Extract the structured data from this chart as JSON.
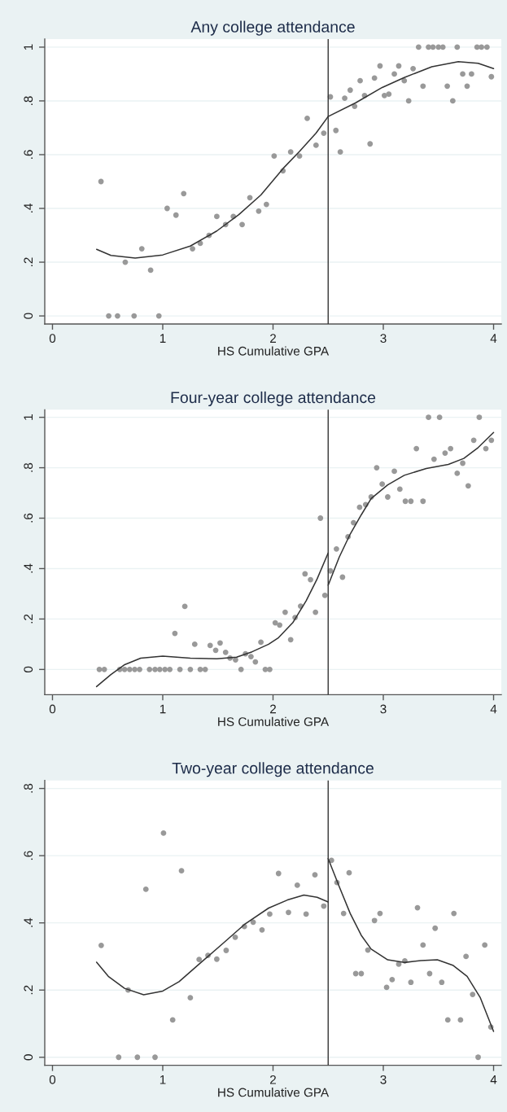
{
  "chart_data": [
    {
      "type": "scatter",
      "title": "Any college attendance",
      "xlabel": "HS Cumulative GPA",
      "xlim": [
        -0.07,
        4.07
      ],
      "xticks": [
        0,
        1,
        2,
        3,
        4
      ],
      "ylim": [
        -0.03,
        1.03
      ],
      "yticks": [
        0,
        {
          "value": 0.2,
          "label": ".2"
        },
        {
          "value": 0.4,
          "label": ".4"
        },
        {
          "value": 0.6,
          "label": ".6"
        },
        {
          "value": 0.8,
          "label": ".8"
        },
        1
      ],
      "grid": "y",
      "ref_lines": [
        {
          "axis": "x",
          "value": 2.5,
          "color": "#333333"
        }
      ],
      "series": [
        {
          "marker": "circle",
          "color": "#999999",
          "x": [
            0.44,
            0.51,
            0.59,
            0.66,
            0.74,
            0.81,
            0.89,
            0.965,
            1.04,
            1.12,
            1.19,
            1.27,
            1.34,
            1.42,
            1.49,
            1.57,
            1.64,
            1.72,
            1.79,
            1.87,
            1.94,
            2.01,
            2.09,
            2.16,
            2.24,
            2.31,
            2.39,
            2.46,
            2.52,
            2.57,
            2.61,
            2.65,
            2.7,
            2.74,
            2.79,
            2.83,
            2.88,
            2.92,
            2.97,
            3.01,
            3.05,
            3.1,
            3.14,
            3.19,
            3.23,
            3.27,
            3.32,
            3.36,
            3.41,
            3.45,
            3.5,
            3.54,
            3.58,
            3.63,
            3.67,
            3.72,
            3.76,
            3.8,
            3.85,
            3.89,
            3.94,
            3.98
          ],
          "values": [
            0.5,
            0,
            0,
            0.2,
            0,
            0.25,
            0.17,
            0,
            0.4,
            0.375,
            0.455,
            0.25,
            0.27,
            0.3,
            0.37,
            0.34,
            0.37,
            0.34,
            0.44,
            0.39,
            0.415,
            0.595,
            0.54,
            0.61,
            0.595,
            0.735,
            0.635,
            0.68,
            0.815,
            0.69,
            0.61,
            0.81,
            0.84,
            0.78,
            0.875,
            0.82,
            0.64,
            0.885,
            0.93,
            0.82,
            0.825,
            0.9,
            0.93,
            0.875,
            0.8,
            0.92,
            1,
            0.855,
            1,
            1,
            1,
            1,
            0.855,
            0.8,
            1,
            0.9,
            0.855,
            0.9,
            1,
            1,
            1,
            0.89
          ]
        },
        {
          "type": "line",
          "color": "#333333",
          "x": [
            0.4,
            0.53,
            0.75,
            1.0,
            1.25,
            1.49,
            1.69,
            1.89,
            2.09,
            2.24,
            2.39,
            2.5
          ],
          "values": [
            0.248,
            0.225,
            0.215,
            0.227,
            0.26,
            0.316,
            0.377,
            0.45,
            0.548,
            0.612,
            0.68,
            0.742
          ]
        },
        {
          "type": "line",
          "color": "#333333",
          "x": [
            2.5,
            2.75,
            2.99,
            3.19,
            3.44,
            3.68,
            3.86,
            4.0
          ],
          "values": [
            0.742,
            0.793,
            0.85,
            0.887,
            0.927,
            0.946,
            0.94,
            0.92
          ]
        }
      ]
    },
    {
      "type": "scatter",
      "title": "Four-year college attendance",
      "xlabel": "HS Cumulative GPA",
      "xlim": [
        -0.07,
        4.07
      ],
      "xticks": [
        0,
        1,
        2,
        3,
        4
      ],
      "ylim": [
        -0.1,
        1.03
      ],
      "yticks": [
        0,
        {
          "value": 0.2,
          "label": ".2"
        },
        {
          "value": 0.4,
          "label": ".4"
        },
        {
          "value": 0.6,
          "label": ".6"
        },
        {
          "value": 0.8,
          "label": ".8"
        },
        1
      ],
      "grid": "y",
      "ref_lines": [
        {
          "axis": "x",
          "value": 2.5,
          "color": "#333333"
        }
      ],
      "series": [
        {
          "marker": "circle",
          "color": "#999999",
          "x": [
            0.425,
            0.47,
            0.61,
            0.654,
            0.7,
            0.746,
            0.79,
            0.88,
            0.93,
            0.973,
            1.02,
            1.064,
            1.11,
            1.156,
            1.2,
            1.25,
            1.29,
            1.34,
            1.385,
            1.43,
            1.48,
            1.52,
            1.57,
            1.61,
            1.66,
            1.71,
            1.75,
            1.8,
            1.84,
            1.89,
            1.93,
            1.97,
            2.02,
            2.06,
            2.11,
            2.16,
            2.2,
            2.25,
            2.29,
            2.34,
            2.385,
            2.43,
            2.47,
            2.52,
            2.575,
            2.63,
            2.68,
            2.73,
            2.785,
            2.84,
            2.89,
            2.94,
            2.99,
            3.04,
            3.1,
            3.15,
            3.2,
            3.25,
            3.3,
            3.36,
            3.41,
            3.46,
            3.51,
            3.56,
            3.61,
            3.67,
            3.72,
            3.77,
            3.82,
            3.87,
            3.93,
            3.98
          ],
          "values": [
            0,
            0,
            0,
            0,
            0,
            0,
            0,
            0,
            0,
            0,
            0,
            0,
            0.143,
            0,
            0.25,
            0,
            0.1,
            0,
            0,
            0.095,
            0.076,
            0.105,
            0.068,
            0.045,
            0.038,
            0,
            0.062,
            0.051,
            0.03,
            0.108,
            0,
            0,
            0.185,
            0.176,
            0.227,
            0.118,
            0.206,
            0.251,
            0.379,
            0.356,
            0.227,
            0.6,
            0.294,
            0.391,
            0.478,
            0.366,
            0.526,
            0.582,
            0.643,
            0.654,
            0.684,
            0.8,
            0.735,
            0.684,
            0.786,
            0.715,
            0.667,
            0.667,
            0.876,
            0.667,
            1,
            0.834,
            1,
            0.858,
            0.876,
            0.778,
            0.818,
            0.728,
            0.909,
            1,
            0.876,
            0.909
          ]
        },
        {
          "type": "line",
          "color": "#333333",
          "x": [
            0.4,
            0.53,
            0.65,
            0.8,
            1.0,
            1.25,
            1.49,
            1.67,
            1.81,
            1.96,
            2.05,
            2.18,
            2.3,
            2.4,
            2.5
          ],
          "values": [
            -0.068,
            -0.02,
            0.018,
            0.045,
            0.053,
            0.045,
            0.042,
            0.049,
            0.07,
            0.1,
            0.126,
            0.186,
            0.272,
            0.359,
            0.462
          ]
        },
        {
          "type": "line",
          "color": "#333333",
          "x": [
            2.5,
            2.6,
            2.7,
            2.8,
            2.89,
            3.04,
            3.19,
            3.39,
            3.59,
            3.73,
            3.86,
            4.0
          ],
          "values": [
            0.334,
            0.445,
            0.537,
            0.613,
            0.678,
            0.732,
            0.77,
            0.797,
            0.813,
            0.837,
            0.88,
            0.94
          ]
        }
      ]
    },
    {
      "type": "scatter",
      "title": "Two-year college attendance",
      "xlabel": "HS Cumulative GPA",
      "xlim": [
        -0.07,
        4.07
      ],
      "xticks": [
        0,
        1,
        2,
        3,
        4
      ],
      "ylim": [
        -0.024,
        0.824
      ],
      "yticks": [
        0,
        {
          "value": 0.2,
          "label": ".2"
        },
        {
          "value": 0.4,
          "label": ".4"
        },
        {
          "value": 0.6,
          "label": ".6"
        },
        {
          "value": 0.8,
          "label": ".8"
        }
      ],
      "grid": "y",
      "ref_lines": [
        {
          "axis": "x",
          "value": 2.5,
          "color": "#333333"
        }
      ],
      "series": [
        {
          "marker": "circle",
          "color": "#999999",
          "x": [
            0.442,
            0.6,
            0.686,
            0.77,
            0.847,
            0.93,
            1.007,
            1.09,
            1.17,
            1.25,
            1.33,
            1.41,
            1.49,
            1.575,
            1.657,
            1.74,
            1.82,
            1.9,
            1.97,
            2.05,
            2.14,
            2.22,
            2.3,
            2.38,
            2.46,
            2.53,
            2.58,
            2.64,
            2.69,
            2.75,
            2.8,
            2.86,
            2.92,
            2.97,
            3.03,
            3.08,
            3.14,
            3.195,
            3.25,
            3.31,
            3.36,
            3.42,
            3.47,
            3.53,
            3.585,
            3.64,
            3.7,
            3.75,
            3.81,
            3.86,
            3.92,
            3.975
          ],
          "values": [
            0.333,
            0,
            0.2,
            0,
            0.5,
            0,
            0.667,
            0.111,
            0.555,
            0.177,
            0.291,
            0.303,
            0.292,
            0.318,
            0.357,
            0.389,
            0.402,
            0.379,
            0.426,
            0.547,
            0.431,
            0.512,
            0.426,
            0.543,
            0.45,
            0.586,
            0.52,
            0.428,
            0.549,
            0.249,
            0.249,
            0.319,
            0.407,
            0.428,
            0.208,
            0.231,
            0.277,
            0.287,
            0.223,
            0.445,
            0.334,
            0.249,
            0.384,
            0.223,
            0.111,
            0.428,
            0.111,
            0.3,
            0.187,
            0,
            0.334,
            0.09
          ]
        },
        {
          "type": "line",
          "color": "#333333",
          "x": [
            0.4,
            0.506,
            0.654,
            0.827,
            1.0,
            1.148,
            1.346,
            1.543,
            1.74,
            1.96,
            2.13,
            2.28,
            2.4,
            2.5
          ],
          "values": [
            0.283,
            0.241,
            0.205,
            0.186,
            0.197,
            0.225,
            0.282,
            0.338,
            0.395,
            0.444,
            0.468,
            0.483,
            0.476,
            0.462
          ]
        },
        {
          "type": "line",
          "color": "#333333",
          "x": [
            2.5,
            2.6,
            2.7,
            2.8,
            2.89,
            3.04,
            3.19,
            3.34,
            3.49,
            3.63,
            3.76,
            3.88,
            4.0
          ],
          "values": [
            0.591,
            0.508,
            0.428,
            0.363,
            0.322,
            0.29,
            0.282,
            0.288,
            0.29,
            0.274,
            0.241,
            0.177,
            0.077
          ]
        }
      ]
    }
  ]
}
